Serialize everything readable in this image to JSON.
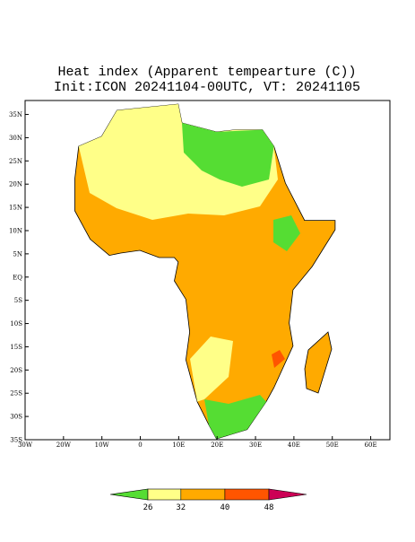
{
  "chart_data": {
    "type": "map",
    "title": "Heat index (Apparent tempearture (C))",
    "subtitle": "Init:ICON 20241104-00UTC, VT: 20241105",
    "xlim": [
      -30,
      65
    ],
    "ylim": [
      -35,
      38
    ],
    "xticks": [
      {
        "value": -30,
        "label": "30W"
      },
      {
        "value": -20,
        "label": "20W"
      },
      {
        "value": -10,
        "label": "10W"
      },
      0,
      {
        "value": 10,
        "label": "10E"
      },
      {
        "value": 20,
        "label": "20E"
      },
      {
        "value": 30,
        "label": "30E"
      },
      {
        "value": 40,
        "label": "40E"
      },
      {
        "value": 50,
        "label": "50E"
      },
      {
        "value": 60,
        "label": "60E"
      }
    ],
    "yticks": [
      {
        "value": -35,
        "label": "35S"
      },
      {
        "value": -30,
        "label": "30S"
      },
      {
        "value": -25,
        "label": "25S"
      },
      {
        "value": -20,
        "label": "20S"
      },
      {
        "value": -15,
        "label": "15S"
      },
      {
        "value": -10,
        "label": "10S"
      },
      {
        "value": -5,
        "label": "5S"
      },
      {
        "value": 0,
        "label": "EQ"
      },
      {
        "value": 5,
        "label": "5N"
      },
      {
        "value": 10,
        "label": "10N"
      },
      {
        "value": 15,
        "label": "15N"
      },
      {
        "value": 20,
        "label": "20N"
      },
      {
        "value": 25,
        "label": "25N"
      },
      {
        "value": 30,
        "label": "30N"
      },
      {
        "value": 35,
        "label": "35N"
      }
    ],
    "colorbar": {
      "levels": [
        26,
        32,
        40,
        48
      ],
      "colors": [
        "#55dd33",
        "#ffff88",
        "#ffaa00",
        "#ff5500",
        "#cc0055"
      ]
    }
  }
}
